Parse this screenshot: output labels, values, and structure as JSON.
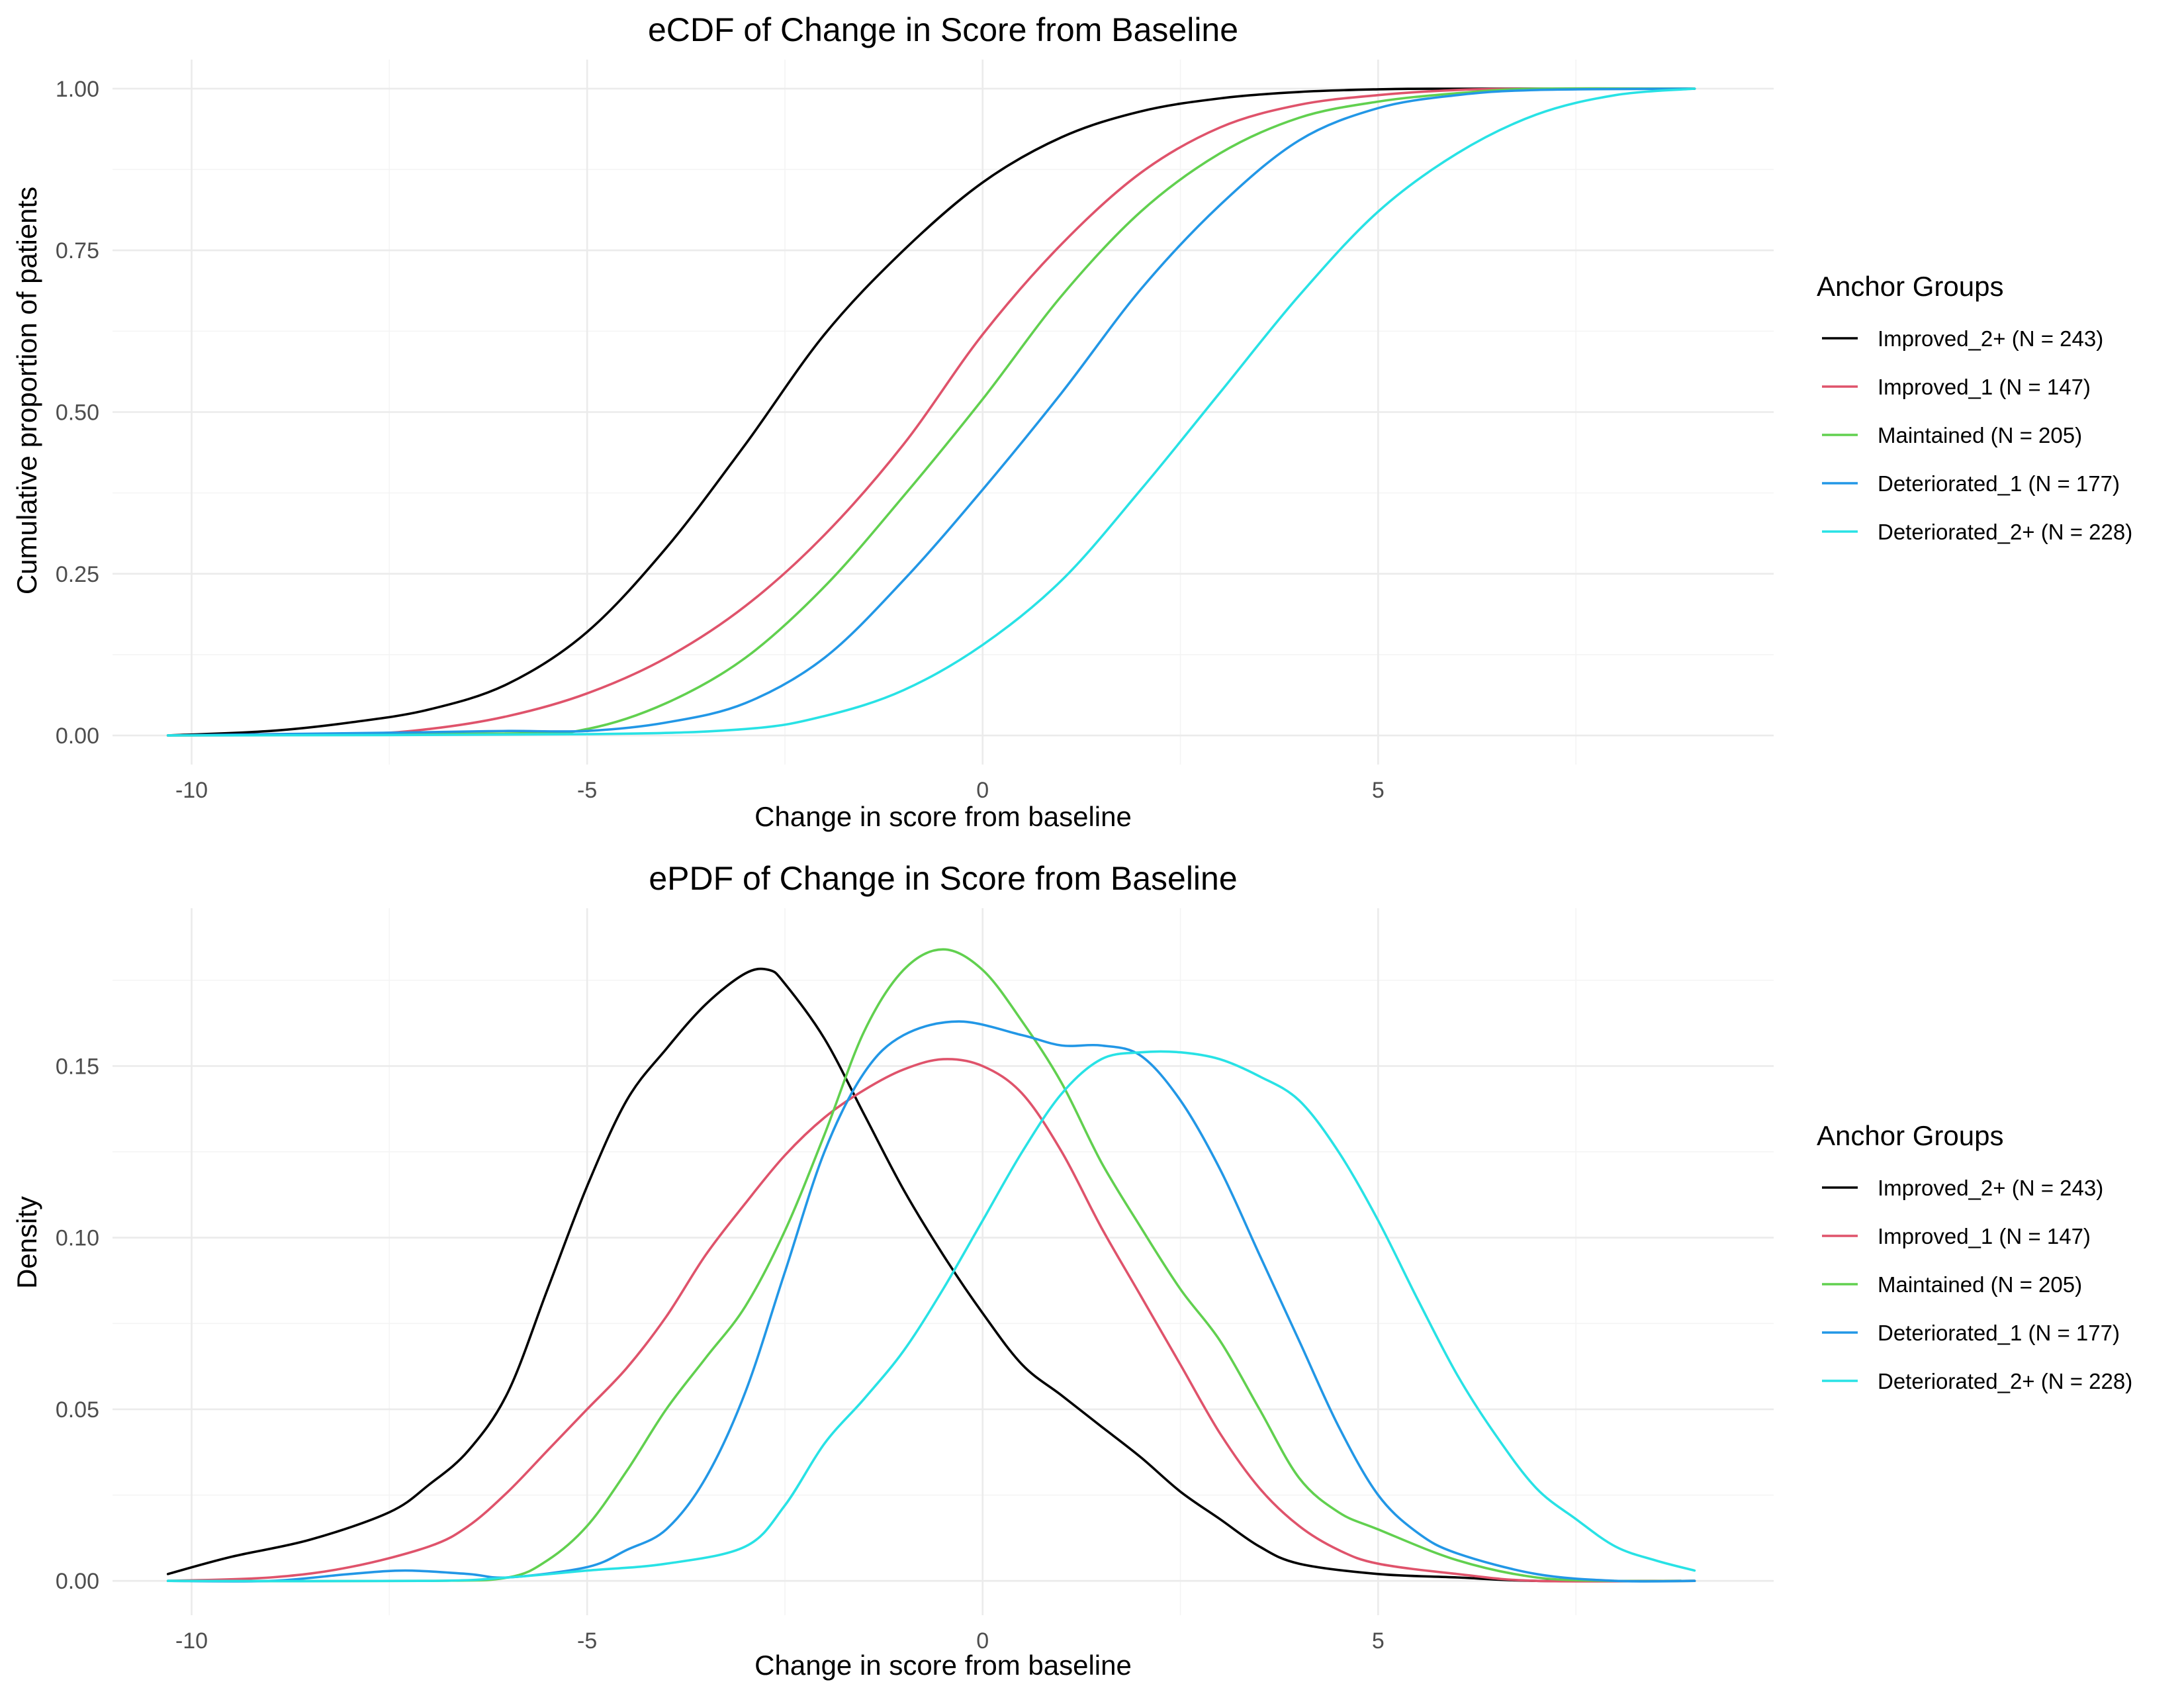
{
  "chart_data": [
    {
      "type": "line",
      "title": "eCDF of Change in Score from Baseline",
      "xlabel": "Change in score from baseline",
      "ylabel": "Cumulative proportion of patients",
      "xlim": [
        -11,
        10
      ],
      "ylim": [
        -0.045,
        1.045
      ],
      "x_ticks": [
        -10,
        -5,
        0,
        5
      ],
      "x_tick_labels": [
        "-10",
        "-5",
        "0",
        "5"
      ],
      "y_ticks": [
        0,
        0.25,
        0.5,
        0.75,
        1.0
      ],
      "y_tick_labels": [
        "0.00",
        "0.25",
        "0.50",
        "0.75",
        "1.00"
      ],
      "grid": true,
      "legend": {
        "title": "Anchor Groups",
        "position": "right",
        "entries": [
          "Improved_2+ (N = 243)",
          "Improved_1 (N = 147)",
          "Maintained (N = 205)",
          "Deteriorated_1 (N = 177)",
          "Deteriorated_2+ (N = 228)"
        ]
      },
      "series": [
        {
          "name": "Improved_2+ (N = 243)",
          "color": "#000000",
          "points": [
            [
              -10.3,
              0
            ],
            [
              -9,
              0.007
            ],
            [
              -8,
              0.02
            ],
            [
              -7,
              0.04
            ],
            [
              -6,
              0.08
            ],
            [
              -5,
              0.16
            ],
            [
              -4,
              0.29
            ],
            [
              -3,
              0.45
            ],
            [
              -2,
              0.62
            ],
            [
              -1,
              0.75
            ],
            [
              0,
              0.855
            ],
            [
              1,
              0.925
            ],
            [
              2,
              0.965
            ],
            [
              3,
              0.985
            ],
            [
              4,
              0.995
            ],
            [
              5,
              0.999
            ],
            [
              6,
              1.0
            ],
            [
              9,
              1.0
            ]
          ]
        },
        {
          "name": "Improved_1 (N = 147)",
          "color": "#df536b",
          "points": [
            [
              -10.3,
              0
            ],
            [
              -8,
              0.002
            ],
            [
              -7,
              0.01
            ],
            [
              -6,
              0.03
            ],
            [
              -5,
              0.065
            ],
            [
              -4,
              0.12
            ],
            [
              -3,
              0.2
            ],
            [
              -2,
              0.31
            ],
            [
              -1,
              0.45
            ],
            [
              0,
              0.62
            ],
            [
              1,
              0.76
            ],
            [
              2,
              0.87
            ],
            [
              3,
              0.94
            ],
            [
              4,
              0.975
            ],
            [
              5,
              0.99
            ],
            [
              6,
              0.998
            ],
            [
              7,
              1.0
            ],
            [
              9,
              1.0
            ]
          ]
        },
        {
          "name": "Maintained (N = 205)",
          "color": "#61d04f",
          "points": [
            [
              -10.3,
              0
            ],
            [
              -6,
              0.003
            ],
            [
              -5,
              0.01
            ],
            [
              -4,
              0.05
            ],
            [
              -3,
              0.12
            ],
            [
              -2,
              0.23
            ],
            [
              -1,
              0.37
            ],
            [
              0,
              0.52
            ],
            [
              1,
              0.68
            ],
            [
              2,
              0.81
            ],
            [
              3,
              0.9
            ],
            [
              4,
              0.955
            ],
            [
              5,
              0.98
            ],
            [
              6,
              0.993
            ],
            [
              7,
              1.0
            ],
            [
              9,
              1.0
            ]
          ]
        },
        {
          "name": "Deteriorated_1 (N = 177)",
          "color": "#2297e6",
          "points": [
            [
              -10.3,
              0
            ],
            [
              -7,
              0.005
            ],
            [
              -6,
              0.007
            ],
            [
              -5,
              0.007
            ],
            [
              -4,
              0.02
            ],
            [
              -3,
              0.05
            ],
            [
              -2,
              0.12
            ],
            [
              -1,
              0.24
            ],
            [
              0,
              0.38
            ],
            [
              1,
              0.53
            ],
            [
              2,
              0.69
            ],
            [
              3,
              0.82
            ],
            [
              4,
              0.92
            ],
            [
              5,
              0.97
            ],
            [
              6,
              0.99
            ],
            [
              7,
              0.998
            ],
            [
              9,
              1.0
            ]
          ]
        },
        {
          "name": "Deteriorated_2+ (N = 228)",
          "color": "#28e2e5",
          "points": [
            [
              -10.3,
              0
            ],
            [
              -5,
              0.002
            ],
            [
              -3,
              0.01
            ],
            [
              -2,
              0.03
            ],
            [
              -1,
              0.07
            ],
            [
              0,
              0.14
            ],
            [
              1,
              0.24
            ],
            [
              2,
              0.38
            ],
            [
              3,
              0.53
            ],
            [
              4,
              0.68
            ],
            [
              5,
              0.81
            ],
            [
              6,
              0.9
            ],
            [
              7,
              0.96
            ],
            [
              8,
              0.99
            ],
            [
              9,
              1.0
            ]
          ]
        }
      ]
    },
    {
      "type": "line",
      "title": "ePDF of Change in Score from Baseline",
      "xlabel": "Change in score from baseline",
      "ylabel": "Density",
      "xlim": [
        -11,
        10
      ],
      "ylim": [
        -0.01,
        0.196
      ],
      "x_ticks": [
        -10,
        -5,
        0,
        5
      ],
      "x_tick_labels": [
        "-10",
        "-5",
        "0",
        "5"
      ],
      "y_ticks": [
        0,
        0.05,
        0.1,
        0.15
      ],
      "y_tick_labels": [
        "0.00",
        "0.05",
        "0.10",
        "0.15"
      ],
      "grid": true,
      "legend": {
        "title": "Anchor Groups",
        "position": "right",
        "entries": [
          "Improved_2+ (N = 243)",
          "Improved_1 (N = 147)",
          "Maintained (N = 205)",
          "Deteriorated_1 (N = 177)",
          "Deteriorated_2+ (N = 228)"
        ]
      },
      "series": [
        {
          "name": "Improved_2+ (N = 243)",
          "color": "#000000",
          "points": [
            [
              -10.3,
              0.002
            ],
            [
              -9.5,
              0.007
            ],
            [
              -8.5,
              0.012
            ],
            [
              -7.5,
              0.02
            ],
            [
              -7,
              0.028
            ],
            [
              -6.5,
              0.038
            ],
            [
              -6,
              0.055
            ],
            [
              -5.5,
              0.085
            ],
            [
              -5,
              0.115
            ],
            [
              -4.5,
              0.14
            ],
            [
              -4,
              0.155
            ],
            [
              -3.5,
              0.168
            ],
            [
              -3,
              0.177
            ],
            [
              -2.7,
              0.178
            ],
            [
              -2.5,
              0.174
            ],
            [
              -2,
              0.158
            ],
            [
              -1.5,
              0.136
            ],
            [
              -1,
              0.114
            ],
            [
              -0.5,
              0.095
            ],
            [
              0,
              0.078
            ],
            [
              0.5,
              0.063
            ],
            [
              1,
              0.054
            ],
            [
              1.5,
              0.045
            ],
            [
              2,
              0.036
            ],
            [
              2.5,
              0.026
            ],
            [
              3,
              0.018
            ],
            [
              3.5,
              0.01
            ],
            [
              4,
              0.005
            ],
            [
              5,
              0.002
            ],
            [
              6,
              0.001
            ],
            [
              7,
              0.0
            ],
            [
              9,
              0.0
            ]
          ]
        },
        {
          "name": "Improved_1 (N = 147)",
          "color": "#df536b",
          "points": [
            [
              -10.3,
              0
            ],
            [
              -9,
              0.001
            ],
            [
              -8,
              0.004
            ],
            [
              -7,
              0.01
            ],
            [
              -6.5,
              0.016
            ],
            [
              -6,
              0.026
            ],
            [
              -5.5,
              0.038
            ],
            [
              -5,
              0.05
            ],
            [
              -4.5,
              0.062
            ],
            [
              -4,
              0.077
            ],
            [
              -3.5,
              0.095
            ],
            [
              -3,
              0.11
            ],
            [
              -2.5,
              0.124
            ],
            [
              -2,
              0.135
            ],
            [
              -1.5,
              0.143
            ],
            [
              -1,
              0.149
            ],
            [
              -0.5,
              0.152
            ],
            [
              0,
              0.15
            ],
            [
              0.5,
              0.142
            ],
            [
              1,
              0.125
            ],
            [
              1.5,
              0.103
            ],
            [
              2,
              0.083
            ],
            [
              2.5,
              0.063
            ],
            [
              3,
              0.043
            ],
            [
              3.5,
              0.027
            ],
            [
              4,
              0.016
            ],
            [
              4.5,
              0.009
            ],
            [
              5,
              0.005
            ],
            [
              6,
              0.002
            ],
            [
              7,
              0.0
            ],
            [
              9,
              0.0
            ]
          ]
        },
        {
          "name": "Maintained (N = 205)",
          "color": "#61d04f",
          "points": [
            [
              -10.3,
              0
            ],
            [
              -7,
              0.0
            ],
            [
              -6,
              0.001
            ],
            [
              -5.5,
              0.006
            ],
            [
              -5,
              0.016
            ],
            [
              -4.5,
              0.032
            ],
            [
              -4,
              0.05
            ],
            [
              -3.5,
              0.065
            ],
            [
              -3,
              0.08
            ],
            [
              -2.5,
              0.102
            ],
            [
              -2,
              0.13
            ],
            [
              -1.5,
              0.16
            ],
            [
              -1,
              0.178
            ],
            [
              -0.5,
              0.184
            ],
            [
              0,
              0.178
            ],
            [
              0.5,
              0.163
            ],
            [
              1,
              0.145
            ],
            [
              1.5,
              0.122
            ],
            [
              2,
              0.103
            ],
            [
              2.5,
              0.085
            ],
            [
              3,
              0.07
            ],
            [
              3.5,
              0.05
            ],
            [
              4,
              0.03
            ],
            [
              4.5,
              0.02
            ],
            [
              5,
              0.015
            ],
            [
              6,
              0.006
            ],
            [
              7,
              0.001
            ],
            [
              8,
              0.0
            ],
            [
              9,
              0.0
            ]
          ]
        },
        {
          "name": "Deteriorated_1 (N = 177)",
          "color": "#2297e6",
          "points": [
            [
              -10.3,
              0
            ],
            [
              -9,
              0.0
            ],
            [
              -8,
              0.002
            ],
            [
              -7.3,
              0.003
            ],
            [
              -6.5,
              0.002
            ],
            [
              -6,
              0.001
            ],
            [
              -5,
              0.004
            ],
            [
              -4.5,
              0.009
            ],
            [
              -4,
              0.015
            ],
            [
              -3.5,
              0.03
            ],
            [
              -3,
              0.055
            ],
            [
              -2.5,
              0.09
            ],
            [
              -2,
              0.125
            ],
            [
              -1.5,
              0.148
            ],
            [
              -1,
              0.159
            ],
            [
              -0.3,
              0.163
            ],
            [
              0.5,
              0.159
            ],
            [
              1,
              0.156
            ],
            [
              1.5,
              0.156
            ],
            [
              2,
              0.153
            ],
            [
              2.5,
              0.14
            ],
            [
              3,
              0.12
            ],
            [
              3.5,
              0.095
            ],
            [
              4,
              0.07
            ],
            [
              4.5,
              0.045
            ],
            [
              5,
              0.025
            ],
            [
              5.5,
              0.014
            ],
            [
              6,
              0.008
            ],
            [
              7,
              0.002
            ],
            [
              8,
              0.0
            ],
            [
              9,
              0.0
            ]
          ]
        },
        {
          "name": "Deteriorated_2+ (N = 228)",
          "color": "#28e2e5",
          "points": [
            [
              -10.3,
              0
            ],
            [
              -7,
              0.0
            ],
            [
              -6,
              0.001
            ],
            [
              -5,
              0.003
            ],
            [
              -4,
              0.005
            ],
            [
              -3,
              0.01
            ],
            [
              -2.5,
              0.022
            ],
            [
              -2,
              0.04
            ],
            [
              -1.5,
              0.053
            ],
            [
              -1,
              0.067
            ],
            [
              -0.5,
              0.085
            ],
            [
              0,
              0.105
            ],
            [
              0.5,
              0.125
            ],
            [
              1,
              0.142
            ],
            [
              1.5,
              0.152
            ],
            [
              2,
              0.154
            ],
            [
              2.5,
              0.154
            ],
            [
              3,
              0.152
            ],
            [
              3.5,
              0.147
            ],
            [
              4,
              0.14
            ],
            [
              4.5,
              0.125
            ],
            [
              5,
              0.105
            ],
            [
              5.5,
              0.082
            ],
            [
              6,
              0.06
            ],
            [
              6.5,
              0.042
            ],
            [
              7,
              0.027
            ],
            [
              7.5,
              0.018
            ],
            [
              8,
              0.01
            ],
            [
              8.5,
              0.006
            ],
            [
              9,
              0.003
            ]
          ]
        }
      ]
    }
  ]
}
